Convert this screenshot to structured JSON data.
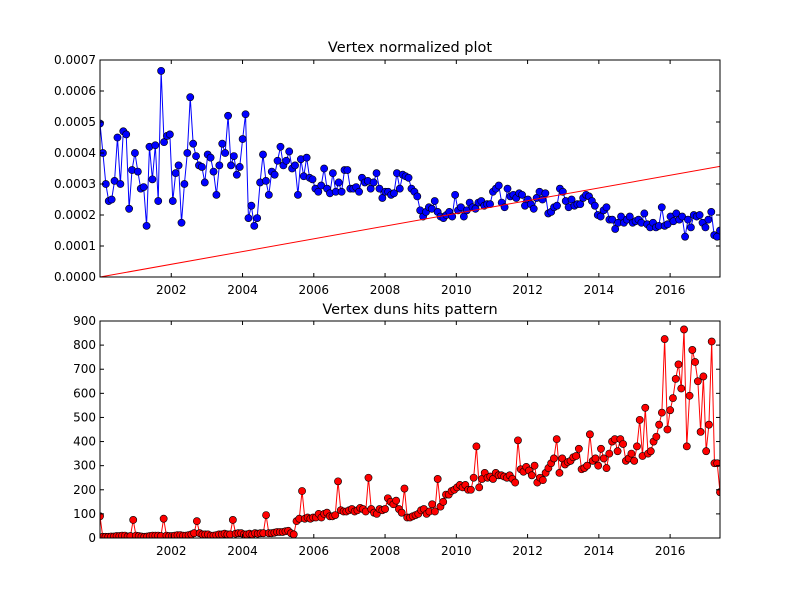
{
  "chart_data": [
    {
      "type": "line",
      "title": "Vertex normalized plot",
      "xlabel": "",
      "ylabel": "",
      "xlim": [
        2000.0,
        2017.4
      ],
      "ylim": [
        0.0,
        0.0007
      ],
      "x_ticks": [
        2002,
        2004,
        2006,
        2008,
        2010,
        2012,
        2014,
        2016
      ],
      "x_tick_labels": [
        "2002",
        "2004",
        "2006",
        "2008",
        "2010",
        "2012",
        "2014",
        "2016"
      ],
      "y_ticks": [
        0.0,
        0.0001,
        0.0002,
        0.0003,
        0.0004,
        0.0005,
        0.0006,
        0.0007
      ],
      "y_tick_labels": [
        "0.0000",
        "0.0001",
        "0.0002",
        "0.0003",
        "0.0004",
        "0.0005",
        "0.0006",
        "0.0007"
      ],
      "grid": false,
      "series": [
        {
          "kind": "line-markers",
          "color": "#0000ff",
          "values": [
            0.000495,
            0.0004,
            0.0003,
            0.000245,
            0.00025,
            0.00031,
            0.00045,
            0.0003,
            0.00047,
            0.00046,
            0.00022,
            0.000345,
            0.0004,
            0.00034,
            0.000285,
            0.00029,
            0.000165,
            0.00042,
            0.000315,
            0.000425,
            0.000245,
            0.000665,
            0.000435,
            0.000455,
            0.00046,
            0.000245,
            0.000335,
            0.00036,
            0.000175,
            0.0003,
            0.0004,
            0.00058,
            0.00043,
            0.00039,
            0.00036,
            0.000355,
            0.000305,
            0.000395,
            0.000385,
            0.00034,
            0.000265,
            0.00036,
            0.00043,
            0.0004,
            0.00052,
            0.00036,
            0.00039,
            0.00033,
            0.000355,
            0.000445,
            0.000525,
            0.00019,
            0.00023,
            0.000165,
            0.00019,
            0.000305,
            0.000395,
            0.00031,
            0.000265,
            0.00034,
            0.00033,
            0.000375,
            0.00042,
            0.00036,
            0.000375,
            0.000405,
            0.00035,
            0.00036,
            0.000265,
            0.00038,
            0.000325,
            0.000385,
            0.00032,
            0.000315,
            0.000285,
            0.000275,
            0.000295,
            0.00035,
            0.000285,
            0.00027,
            0.000335,
            0.000275,
            0.000305,
            0.000275,
            0.000345,
            0.000345,
            0.000285,
            0.000285,
            0.00029,
            0.000275,
            0.00032,
            0.000305,
            0.00031,
            0.000285,
            0.000305,
            0.000335,
            0.000285,
            0.000255,
            0.000275,
            0.000275,
            0.000265,
            0.00027,
            0.000335,
            0.000285,
            0.00033,
            0.000325,
            0.00032,
            0.000285,
            0.000275,
            0.00026,
            0.000215,
            0.000195,
            0.00021,
            0.000225,
            0.00022,
            0.000245,
            0.00021,
            0.000195,
            0.00019,
            0.0002,
            0.00021,
            0.000195,
            0.000265,
            0.000215,
            0.000225,
            0.000195,
            0.000215,
            0.00024,
            0.000225,
            0.00022,
            0.00024,
            0.000245,
            0.00023,
            0.000235,
            0.000235,
            0.000275,
            0.000285,
            0.000295,
            0.00024,
            0.000225,
            0.000285,
            0.00026,
            0.000265,
            0.000255,
            0.00027,
            0.000265,
            0.00023,
            0.00025,
            0.000235,
            0.00022,
            0.000255,
            0.000275,
            0.00025,
            0.00027,
            0.000205,
            0.00021,
            0.000225,
            0.00023,
            0.000285,
            0.000275,
            0.000245,
            0.000225,
            0.00025,
            0.00023,
            0.000235,
            0.000235,
            0.000255,
            0.000265,
            0.00026,
            0.000245,
            0.00023,
            0.0002,
            0.000195,
            0.000215,
            0.000225,
            0.000185,
            0.000185,
            0.000155,
            0.000175,
            0.000195,
            0.000175,
            0.000185,
            0.000195,
            0.000175,
            0.00018,
            0.000185,
            0.000175,
            0.000205,
            0.00017,
            0.00016,
            0.000175,
            0.00016,
            0.000165,
            0.000225,
            0.000165,
            0.00017,
            0.000195,
            0.00018,
            0.000205,
            0.000185,
            0.000195,
            0.00013,
            0.000185,
            0.00016,
            0.0002,
            0.000195,
            0.0002,
            0.000175,
            0.00016,
            0.000185,
            0.00021,
            0.000135,
            0.00013,
            0.00015
          ]
        },
        {
          "kind": "line",
          "color": "#ff0000",
          "x": [
            2000.0,
            2017.4
          ],
          "values": [
            0.0,
            0.000357
          ]
        }
      ]
    },
    {
      "type": "line",
      "title": "Vertex duns hits pattern",
      "xlabel": "",
      "ylabel": "",
      "xlim": [
        2000.0,
        2017.4
      ],
      "ylim": [
        0,
        900
      ],
      "x_ticks": [
        2002,
        2004,
        2006,
        2008,
        2010,
        2012,
        2014,
        2016
      ],
      "x_tick_labels": [
        "2002",
        "2004",
        "2006",
        "2008",
        "2010",
        "2012",
        "2014",
        "2016"
      ],
      "y_ticks": [
        0,
        100,
        200,
        300,
        400,
        500,
        600,
        700,
        800,
        900
      ],
      "y_tick_labels": [
        "0",
        "100",
        "200",
        "300",
        "400",
        "500",
        "600",
        "700",
        "800",
        "900"
      ],
      "grid": false,
      "series": [
        {
          "kind": "line-markers",
          "color": "#ff0000",
          "values": [
            90,
            5,
            5,
            5,
            6,
            6,
            8,
            8,
            10,
            10,
            6,
            8,
            75,
            10,
            8,
            6,
            5,
            6,
            8,
            10,
            10,
            10,
            8,
            80,
            10,
            8,
            8,
            10,
            12,
            12,
            10,
            10,
            12,
            15,
            20,
            70,
            20,
            15,
            15,
            15,
            10,
            10,
            12,
            15,
            15,
            18,
            15,
            15,
            75,
            18,
            20,
            20,
            15,
            15,
            18,
            15,
            20,
            18,
            20,
            20,
            95,
            20,
            20,
            22,
            25,
            25,
            25,
            28,
            30,
            20,
            15,
            70,
            80,
            195,
            80,
            85,
            80,
            85,
            85,
            100,
            85,
            100,
            105,
            90,
            90,
            95,
            235,
            115,
            110,
            110,
            115,
            120,
            110,
            115,
            125,
            120,
            110,
            250,
            120,
            105,
            100,
            120,
            115,
            120,
            165,
            150,
            140,
            155,
            120,
            105,
            205,
            85,
            85,
            90,
            95,
            100,
            115,
            120,
            100,
            110,
            140,
            110,
            245,
            130,
            150,
            180,
            180,
            195,
            200,
            210,
            220,
            210,
            220,
            200,
            200,
            250,
            380,
            210,
            245,
            270,
            250,
            255,
            245,
            270,
            260,
            260,
            255,
            250,
            260,
            245,
            230,
            405,
            285,
            275,
            295,
            280,
            260,
            300,
            230,
            250,
            240,
            270,
            290,
            310,
            330,
            410,
            270,
            330,
            305,
            315,
            320,
            335,
            340,
            370,
            285,
            290,
            300,
            430,
            320,
            330,
            300,
            370,
            330,
            290,
            350,
            400,
            410,
            360,
            410,
            390,
            320,
            330,
            350,
            320,
            380,
            490,
            340,
            540,
            350,
            360,
            400,
            420,
            470,
            520,
            825,
            450,
            530,
            580,
            660,
            720,
            620,
            865,
            380,
            590,
            780,
            730,
            650,
            440,
            670,
            360,
            470,
            815,
            310,
            310,
            190
          ]
        }
      ]
    }
  ]
}
